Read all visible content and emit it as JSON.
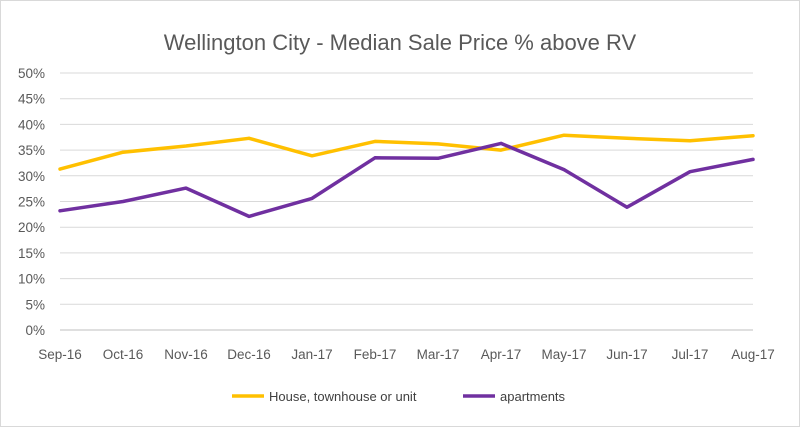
{
  "chart_data": {
    "type": "line",
    "title": "Wellington City - Median Sale Price % above RV",
    "xlabel": "",
    "ylabel": "",
    "categories": [
      "Sep-16",
      "Oct-16",
      "Nov-16",
      "Dec-16",
      "Jan-17",
      "Feb-17",
      "Mar-17",
      "Apr-17",
      "May-17",
      "Jun-17",
      "Jul-17",
      "Aug-17"
    ],
    "yticks": [
      "0%",
      "5%",
      "10%",
      "15%",
      "20%",
      "25%",
      "30%",
      "35%",
      "40%",
      "45%",
      "50%"
    ],
    "ylim": [
      0,
      50
    ],
    "grid": true,
    "legend_position": "bottom",
    "series": [
      {
        "name": "House, townhouse or unit",
        "color": "#FFC000",
        "values": [
          31.3,
          34.6,
          35.8,
          37.3,
          33.9,
          36.7,
          36.2,
          35.0,
          37.9,
          37.3,
          36.8,
          37.8
        ]
      },
      {
        "name": "apartments",
        "color": "#7030A0",
        "values": [
          23.2,
          25.0,
          27.6,
          22.1,
          25.6,
          33.5,
          33.4,
          36.3,
          31.2,
          23.9,
          30.8,
          33.2
        ]
      }
    ]
  }
}
